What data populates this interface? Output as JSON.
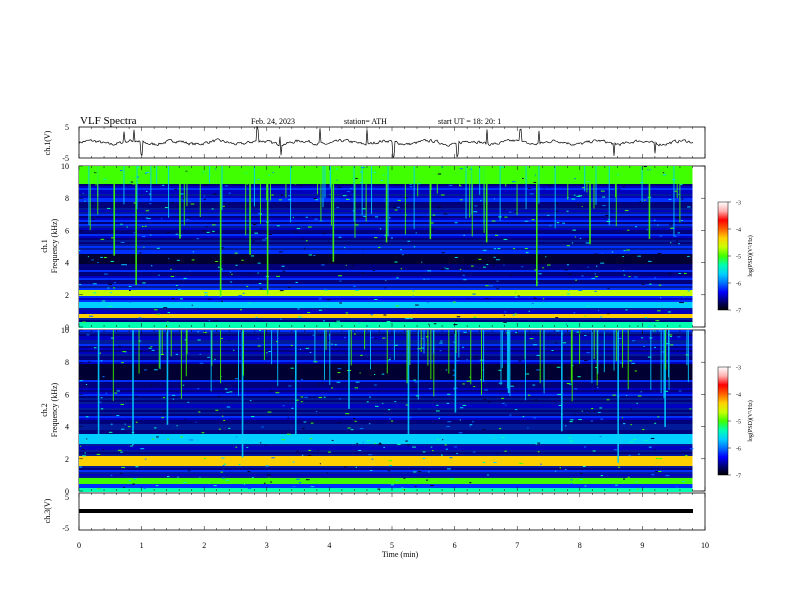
{
  "header": {
    "title": "VLF  Spectra",
    "date": "Feb. 24, 2023",
    "station": "station= ATH",
    "start": "start  UT  =    18: 20: 1"
  },
  "colorbar": {
    "label": "log(PSD)(V²/Hz)",
    "ticks": [
      "-3",
      "-4",
      "-5",
      "-6",
      "-7"
    ],
    "colors": [
      "#000000",
      "#00007a",
      "#0000ff",
      "#0070ff",
      "#00d0ff",
      "#00ffb0",
      "#40ff00",
      "#c8ff00",
      "#ffd000",
      "#ff6000",
      "#ff0000",
      "#ffb0b0",
      "#ffffff"
    ]
  },
  "chart_data": [
    {
      "type": "line",
      "name": "ch1-waveform",
      "ylabel": "ch.1(V)",
      "ylim": [
        -5,
        5
      ],
      "yticks": [
        "5",
        "-5"
      ],
      "xlim": [
        0,
        10
      ],
      "baseline": 0,
      "color": "#000000",
      "spikes_min": [
        0.72,
        0.88,
        1.0,
        2.85,
        3.22,
        3.85,
        4.6,
        5.02,
        6.05,
        6.52,
        7.05,
        7.35,
        8.55,
        9.2
      ]
    },
    {
      "type": "heatmap",
      "name": "ch1-spectrogram",
      "ylabel": "ch.1\nFrequency (kHz)",
      "ylim": [
        0,
        10
      ],
      "yticks": [
        "10",
        "8",
        "6",
        "4",
        "2",
        "0"
      ],
      "xlim": [
        0,
        9.8
      ],
      "zlim": [
        -7,
        -3
      ],
      "zlabel": "log(PSD)(V²/Hz)",
      "band_colors_khz": [
        {
          "from": 0.0,
          "to": 0.4,
          "color": "#00ffb0"
        },
        {
          "from": 0.6,
          "to": 0.9,
          "color": "#ffd000"
        },
        {
          "from": 1.2,
          "to": 1.6,
          "color": "#00d0ff"
        },
        {
          "from": 2.0,
          "to": 2.4,
          "color": "#c8ff00"
        },
        {
          "from": 4.0,
          "to": 4.6,
          "color": "#000033"
        },
        {
          "from": 9.0,
          "to": 10.0,
          "color": "#40ff00"
        }
      ],
      "spikes_min": [
        0.55,
        0.9,
        1.6,
        2.25,
        2.72,
        3.0,
        4.05,
        4.9,
        5.6,
        6.5,
        7.3,
        8.15,
        9.1
      ]
    },
    {
      "type": "heatmap",
      "name": "ch2-spectrogram",
      "ylabel": "ch.2\nFrequency (kHz)",
      "ylim": [
        0,
        10
      ],
      "yticks": [
        "10",
        "8",
        "6",
        "4",
        "2",
        "0"
      ],
      "xlim": [
        0,
        9.8
      ],
      "zlim": [
        -7,
        -3
      ],
      "zlabel": "log(PSD)(V²/Hz)",
      "band_colors_khz": [
        {
          "from": 0.0,
          "to": 0.3,
          "color": "#00ffb0"
        },
        {
          "from": 0.5,
          "to": 0.9,
          "color": "#40ff00"
        },
        {
          "from": 1.6,
          "to": 2.2,
          "color": "#ffd000"
        },
        {
          "from": 3.0,
          "to": 3.6,
          "color": "#00d0ff"
        },
        {
          "from": 7.0,
          "to": 8.0,
          "color": "#000033"
        }
      ],
      "spikes_min": [
        0.3,
        0.85,
        1.4,
        2.6,
        3.45,
        4.3,
        5.25,
        6.0,
        6.85,
        7.7,
        8.6,
        9.35
      ]
    },
    {
      "type": "line",
      "name": "ch3-waveform",
      "ylabel": "ch.3(V)",
      "ylim": [
        -5,
        5
      ],
      "yticks": [
        "5",
        "0",
        "-5"
      ],
      "xlim": [
        0,
        10
      ],
      "baseline": 0,
      "color": "#000000",
      "xlabel": "Time  (min)",
      "xticks": [
        "0",
        "1",
        "2",
        "3",
        "4",
        "5",
        "6",
        "7",
        "8",
        "9",
        "10"
      ]
    }
  ]
}
